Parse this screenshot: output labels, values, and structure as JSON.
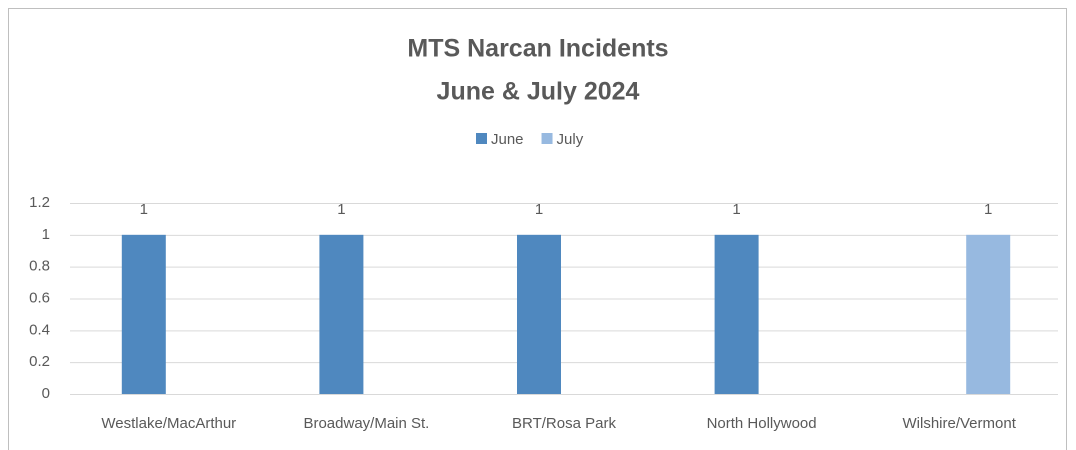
{
  "chart_data": {
    "type": "bar",
    "title": [
      "MTS Narcan Incidents",
      "June & July 2024"
    ],
    "categories": [
      "Westlake/MacArthur",
      "Broadway/Main St.",
      "BRT/Rosa Park",
      "North Hollywood",
      "Wilshire/Vermont"
    ],
    "series": [
      {
        "name": "June",
        "color": "#4f88bf",
        "values": [
          1,
          1,
          1,
          1,
          null
        ]
      },
      {
        "name": "July",
        "color": "#97b9e0",
        "values": [
          null,
          null,
          null,
          null,
          1
        ]
      }
    ],
    "ylim": [
      0,
      1.2
    ],
    "yticks": [
      0,
      0.2,
      0.4,
      0.6,
      0.8,
      1,
      1.2
    ],
    "grid": true,
    "legend": "top"
  }
}
